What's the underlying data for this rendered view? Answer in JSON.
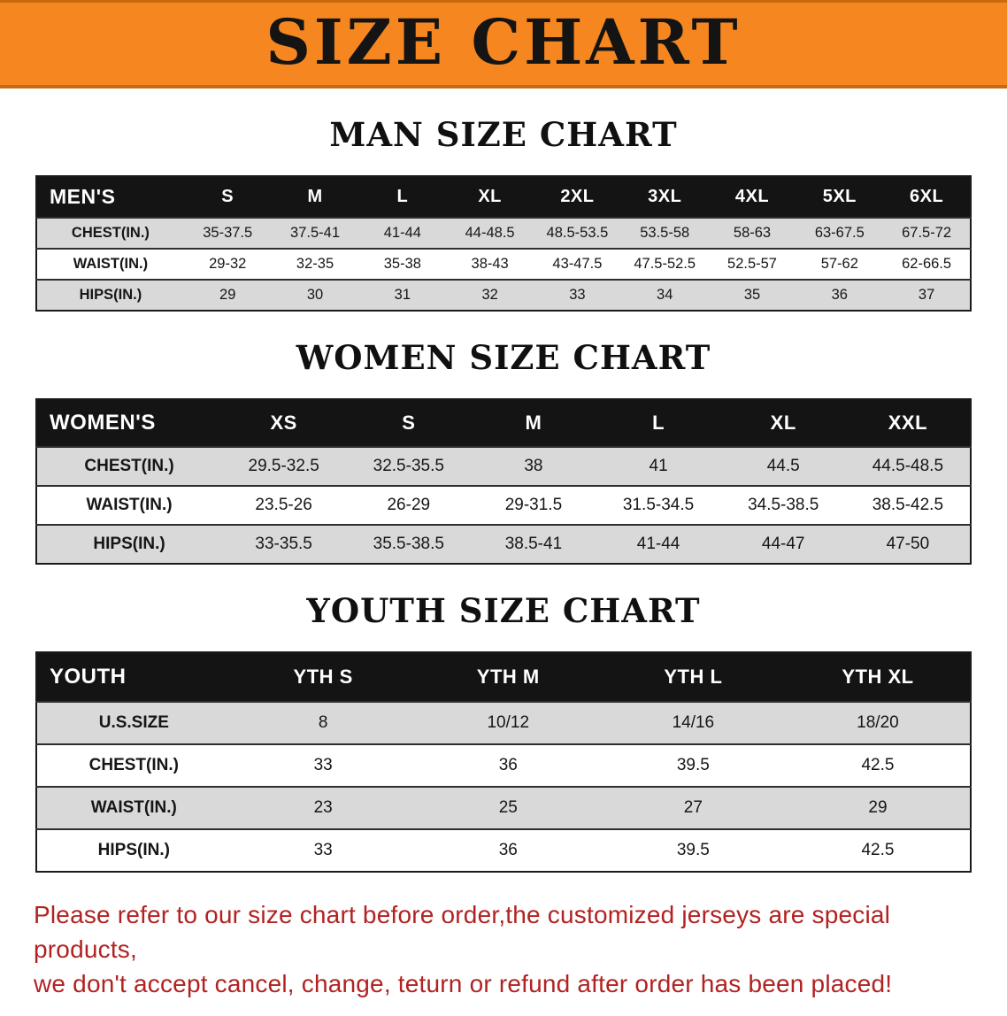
{
  "banner": {
    "title": "SIZE CHART",
    "bg_color": "#f6861f",
    "text_color": "#141414"
  },
  "sections": [
    {
      "id": "men",
      "heading": "MAN SIZE CHART",
      "table": {
        "header": [
          "MEN'S",
          "S",
          "M",
          "L",
          "XL",
          "2XL",
          "3XL",
          "4XL",
          "5XL",
          "6XL"
        ],
        "rows": [
          [
            "CHEST(IN.)",
            "35-37.5",
            "37.5-41",
            "41-44",
            "44-48.5",
            "48.5-53.5",
            "53.5-58",
            "58-63",
            "63-67.5",
            "67.5-72"
          ],
          [
            "WAIST(IN.)",
            "29-32",
            "32-35",
            "35-38",
            "38-43",
            "43-47.5",
            "47.5-52.5",
            "52.5-57",
            "57-62",
            "62-66.5"
          ],
          [
            "HIPS(IN.)",
            "29",
            "30",
            "31",
            "32",
            "33",
            "34",
            "35",
            "36",
            "37"
          ]
        ]
      }
    },
    {
      "id": "women",
      "heading": "WOMEN SIZE CHART",
      "table": {
        "header": [
          "WOMEN'S",
          "XS",
          "S",
          "M",
          "L",
          "XL",
          "XXL"
        ],
        "rows": [
          [
            "CHEST(IN.)",
            "29.5-32.5",
            "32.5-35.5",
            "38",
            "41",
            "44.5",
            "44.5-48.5"
          ],
          [
            "WAIST(IN.)",
            "23.5-26",
            "26-29",
            "29-31.5",
            "31.5-34.5",
            "34.5-38.5",
            "38.5-42.5"
          ],
          [
            "HIPS(IN.)",
            "33-35.5",
            "35.5-38.5",
            "38.5-41",
            "41-44",
            "44-47",
            "47-50"
          ]
        ]
      }
    },
    {
      "id": "youth",
      "heading": "YOUTH SIZE CHART",
      "table": {
        "header": [
          "YOUTH",
          "YTH S",
          "YTH M",
          "YTH L",
          "YTH XL"
        ],
        "rows": [
          [
            "U.S.SIZE",
            "8",
            "10/12",
            "14/16",
            "18/20"
          ],
          [
            "CHEST(IN.)",
            "33",
            "36",
            "39.5",
            "42.5"
          ],
          [
            "WAIST(IN.)",
            "23",
            "25",
            "27",
            "29"
          ],
          [
            "HIPS(IN.)",
            "33",
            "36",
            "39.5",
            "42.5"
          ]
        ]
      }
    }
  ],
  "disclaimer": {
    "lines": [
      "Please refer to our size chart before order,the customized jerseys are special products,",
      "we don't accept cancel, change, teturn or refund after order has been placed!"
    ],
    "color": "#b22222"
  },
  "colors": {
    "banner_orange": "#f6861f",
    "table_header_bg": "#141414",
    "row_stripe_gray": "#d9d9d9",
    "disclaimer_red": "#b22222"
  }
}
